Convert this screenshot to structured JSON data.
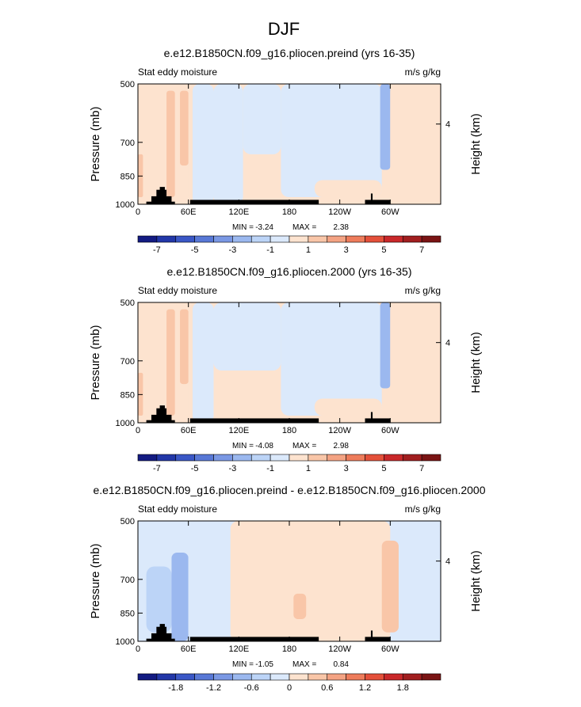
{
  "page_title": "DJF",
  "colors": {
    "positive": [
      "#fde3cf",
      "#f9c6a8",
      "#f4a383",
      "#ee7c5b",
      "#e4503a",
      "#c9282a",
      "#a11e1f",
      "#7a1414"
    ],
    "negative": [
      "#dbe9fb",
      "#bcd4f7",
      "#9bb8ef",
      "#7a98e4",
      "#5878d6",
      "#3a57c6",
      "#2237a8",
      "#131b82"
    ],
    "land": "#000000"
  },
  "chart_data": [
    {
      "type": "heatmap",
      "title": "e.e12.B1850CN.f09_g16.pliocen.preind (yrs 16-35)",
      "left_label": "Stat eddy moisture",
      "units": "m/s g/kg",
      "ylabel": "Pressure (mb)",
      "ylabel_right": "Height (km)",
      "yticks": [
        "500",
        "700",
        "850",
        "1000"
      ],
      "ytick_values": [
        500,
        700,
        850,
        1000
      ],
      "yticks_right": [
        "4"
      ],
      "ytick_right_values": [
        630
      ],
      "xticks": [
        "0",
        "60E",
        "120E",
        "180",
        "120W",
        "60W"
      ],
      "xtick_values": [
        0,
        60,
        120,
        180,
        240,
        300
      ],
      "xlim": [
        0,
        360
      ],
      "ylim": [
        1000,
        500
      ],
      "min_label": "MIN =",
      "min_value": "-3.24",
      "max_label": "MAX =",
      "max_value": "2.38",
      "colorbar_labels": [
        "-7",
        "-5",
        "-3",
        "-1",
        "1",
        "3",
        "5",
        "7"
      ],
      "features": [
        {
          "lon": [
            0,
            60
          ],
          "p": [
            500,
            1000
          ],
          "value": 0.5
        },
        {
          "lon": [
            0,
            6
          ],
          "p": [
            750,
            960
          ],
          "value": 1.5
        },
        {
          "lon": [
            34,
            44
          ],
          "p": [
            520,
            960
          ],
          "value": 1.5
        },
        {
          "lon": [
            50,
            60
          ],
          "p": [
            520,
            800
          ],
          "value": 1.0
        },
        {
          "lon": [
            65,
            90
          ],
          "p": [
            500,
            1000
          ],
          "value": -0.4
        },
        {
          "lon": [
            90,
            125
          ],
          "p": [
            500,
            1000
          ],
          "value": -0.5
        },
        {
          "lon": [
            125,
            170
          ],
          "p": [
            500,
            750
          ],
          "value": -0.5
        },
        {
          "lon": [
            170,
            290
          ],
          "p": [
            500,
            960
          ],
          "value": -0.5
        },
        {
          "lon": [
            210,
            290
          ],
          "p": [
            870,
            960
          ],
          "value": 0.3
        },
        {
          "lon": [
            288,
            300
          ],
          "p": [
            500,
            820
          ],
          "value": -2.0
        },
        {
          "lon": [
            300,
            360
          ],
          "p": [
            500,
            1000
          ],
          "value": 0.5
        }
      ]
    },
    {
      "type": "heatmap",
      "title": "e.e12.B1850CN.f09_g16.pliocen.2000 (yrs 16-35)",
      "left_label": "Stat eddy moisture",
      "units": "m/s g/kg",
      "ylabel": "Pressure (mb)",
      "ylabel_right": "Height (km)",
      "yticks": [
        "500",
        "700",
        "850",
        "1000"
      ],
      "ytick_values": [
        500,
        700,
        850,
        1000
      ],
      "yticks_right": [
        "4"
      ],
      "ytick_right_values": [
        630
      ],
      "xticks": [
        "0",
        "60E",
        "120E",
        "180",
        "120W",
        "60W"
      ],
      "xtick_values": [
        0,
        60,
        120,
        180,
        240,
        300
      ],
      "xlim": [
        0,
        360
      ],
      "ylim": [
        1000,
        500
      ],
      "min_label": "MIN =",
      "min_value": "-4.08",
      "max_label": "MAX =",
      "max_value": "2.98",
      "colorbar_labels": [
        "-7",
        "-5",
        "-3",
        "-1",
        "1",
        "3",
        "5",
        "7"
      ],
      "features": [
        {
          "lon": [
            0,
            60
          ],
          "p": [
            500,
            1000
          ],
          "value": 0.5
        },
        {
          "lon": [
            0,
            6
          ],
          "p": [
            750,
            960
          ],
          "value": 1.5
        },
        {
          "lon": [
            34,
            44
          ],
          "p": [
            520,
            960
          ],
          "value": 1.5
        },
        {
          "lon": [
            50,
            60
          ],
          "p": [
            520,
            800
          ],
          "value": 1.0
        },
        {
          "lon": [
            65,
            90
          ],
          "p": [
            500,
            1000
          ],
          "value": -0.4
        },
        {
          "lon": [
            90,
            170
          ],
          "p": [
            500,
            740
          ],
          "value": -0.5
        },
        {
          "lon": [
            170,
            290
          ],
          "p": [
            500,
            960
          ],
          "value": -0.5
        },
        {
          "lon": [
            210,
            290
          ],
          "p": [
            870,
            960
          ],
          "value": 0.3
        },
        {
          "lon": [
            288,
            300
          ],
          "p": [
            500,
            820
          ],
          "value": -2.5
        },
        {
          "lon": [
            300,
            360
          ],
          "p": [
            500,
            1000
          ],
          "value": 0.5
        }
      ]
    },
    {
      "type": "heatmap",
      "title": "e.e12.B1850CN.f09_g16.pliocen.preind - e.e12.B1850CN.f09_g16.pliocen.2000",
      "left_label": "Stat eddy moisture",
      "units": "m/s g/kg",
      "ylabel": "Pressure (mb)",
      "ylabel_right": "Height (km)",
      "yticks": [
        "500",
        "700",
        "850",
        "1000"
      ],
      "ytick_values": [
        500,
        700,
        850,
        1000
      ],
      "yticks_right": [
        "4"
      ],
      "ytick_right_values": [
        630
      ],
      "xticks": [
        "0",
        "60E",
        "120E",
        "180",
        "120W",
        "60W"
      ],
      "xtick_values": [
        0,
        60,
        120,
        180,
        240,
        300
      ],
      "xlim": [
        0,
        360
      ],
      "ylim": [
        1000,
        500
      ],
      "min_label": "MIN =",
      "min_value": "-1.05",
      "max_label": "MAX =",
      "max_value": "0.84",
      "colorbar_labels": [
        "-1.8",
        "-1.2",
        "-0.6",
        "0",
        "0.6",
        "1.2",
        "1.8"
      ],
      "features": [
        {
          "lon": [
            0,
            60
          ],
          "p": [
            500,
            1000
          ],
          "value": -0.15
        },
        {
          "lon": [
            10,
            40
          ],
          "p": [
            650,
            950
          ],
          "value": -0.35
        },
        {
          "lon": [
            40,
            60
          ],
          "p": [
            600,
            1000
          ],
          "value": -0.6
        },
        {
          "lon": [
            60,
            110
          ],
          "p": [
            500,
            1000
          ],
          "value": -0.15
        },
        {
          "lon": [
            110,
            300
          ],
          "p": [
            500,
            1000
          ],
          "value": 0.15
        },
        {
          "lon": [
            185,
            200
          ],
          "p": [
            760,
            880
          ],
          "value": 0.45
        },
        {
          "lon": [
            290,
            310
          ],
          "p": [
            560,
            950
          ],
          "value": 0.5
        },
        {
          "lon": [
            320,
            360
          ],
          "p": [
            500,
            1000
          ],
          "value": -0.15
        }
      ]
    }
  ]
}
